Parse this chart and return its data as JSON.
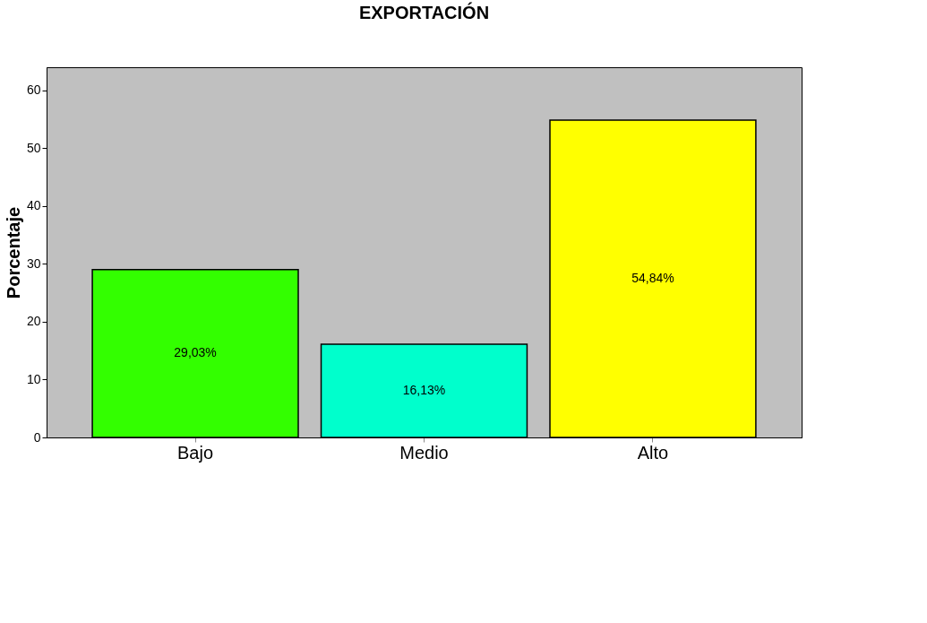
{
  "chart_data": {
    "type": "bar",
    "title": "EXPORTACIÓN",
    "ylabel": "Porcentaje",
    "categories": [
      "Bajo",
      "Medio",
      "Alto"
    ],
    "values": [
      29.03,
      16.13,
      54.84
    ],
    "colors": [
      "#33ff00",
      "#00ffcc",
      "#ffff00"
    ],
    "value_labels": [
      "29,03%",
      "16,13%",
      "54,84%"
    ],
    "ylim": [
      0,
      64
    ],
    "yticks": [
      0,
      10,
      20,
      30,
      40,
      50,
      60
    ],
    "grid": false
  }
}
